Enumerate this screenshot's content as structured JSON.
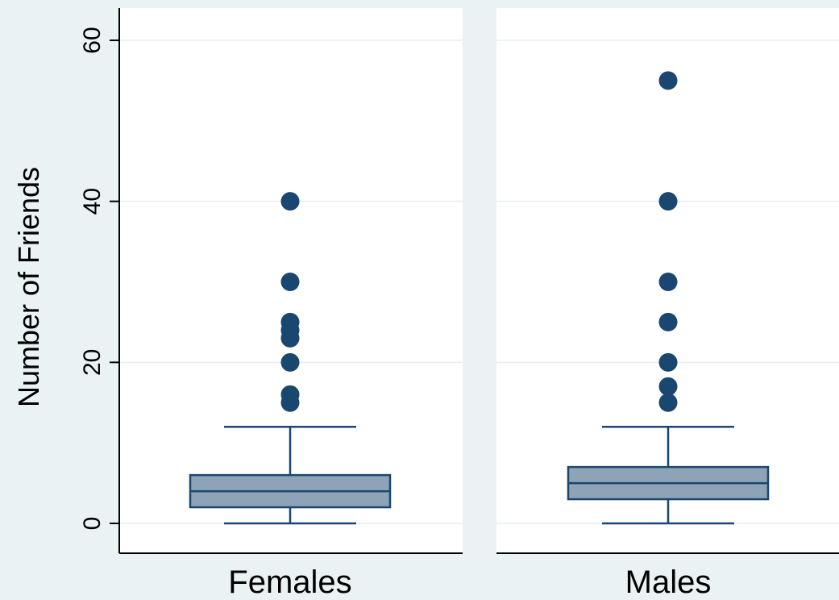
{
  "chart_data": {
    "type": "box",
    "ylabel": "Number of Friends",
    "ylim": [
      0,
      60
    ],
    "yticks": [
      0,
      20,
      40,
      60
    ],
    "grid": true,
    "colors": {
      "background": "#eaf2f3",
      "panel": "#ffffff",
      "grid": "#e6eef0",
      "box_fill": "#8ea3b7",
      "box_stroke": "#1a476f",
      "outlier": "#1a476f"
    },
    "panels": [
      {
        "label": "Females",
        "whisker_low": 0,
        "q1": 2,
        "median": 4,
        "q3": 6,
        "whisker_high": 12,
        "outliers": [
          15,
          16,
          20,
          23,
          24,
          25,
          30,
          40
        ]
      },
      {
        "label": "Males",
        "whisker_low": 0,
        "q1": 3,
        "median": 5,
        "q3": 7,
        "whisker_high": 12,
        "outliers": [
          15,
          17,
          20,
          25,
          30,
          40,
          55
        ]
      }
    ]
  }
}
